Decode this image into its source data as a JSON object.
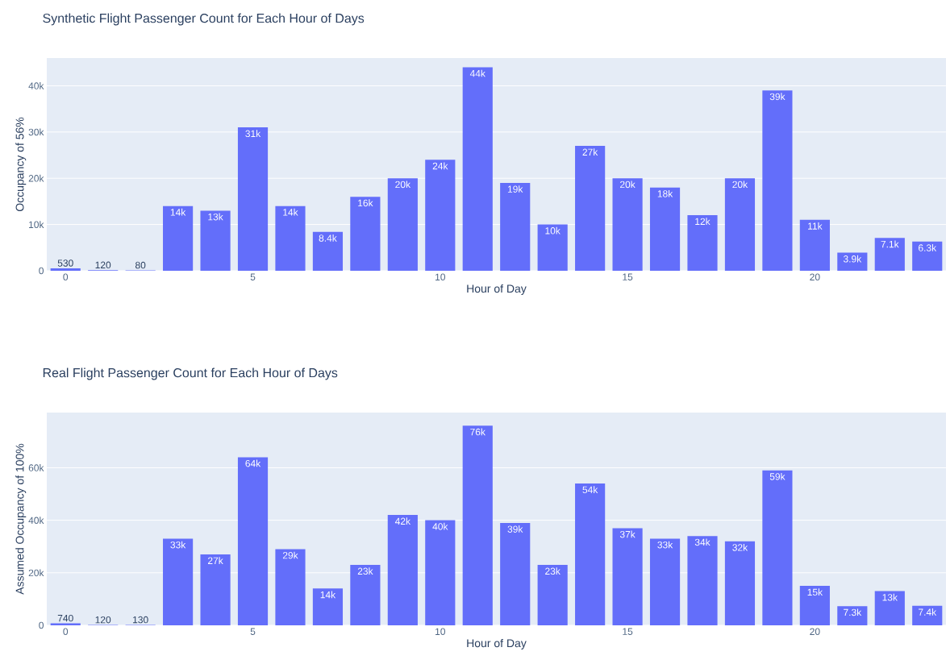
{
  "chart_data": [
    {
      "type": "bar",
      "title": "Synthetic Flight Passenger Count for Each Hour of Days",
      "xlabel": "Hour of Day",
      "ylabel": "Occupancy of 56%",
      "color": "#636efa",
      "x": [
        0,
        1,
        2,
        3,
        4,
        5,
        6,
        7,
        8,
        9,
        10,
        11,
        12,
        13,
        14,
        15,
        16,
        17,
        18,
        19,
        20,
        21,
        22,
        23
      ],
      "values": [
        530,
        120,
        80,
        14000,
        13000,
        31000,
        14000,
        8400,
        16000,
        20000,
        24000,
        44000,
        19000,
        10000,
        27000,
        20000,
        18000,
        12000,
        20000,
        39000,
        11000,
        3900,
        7100,
        6300
      ],
      "value_labels": [
        "530",
        "120",
        "80",
        "14k",
        "13k",
        "31k",
        "14k",
        "8.4k",
        "16k",
        "20k",
        "24k",
        "44k",
        "19k",
        "10k",
        "27k",
        "20k",
        "18k",
        "12k",
        "20k",
        "39k",
        "11k",
        "3.9k",
        "7.1k",
        "6.3k"
      ],
      "xlim": [
        -0.5,
        23.5
      ],
      "xticks": [
        0,
        5,
        10,
        15,
        20
      ],
      "ylim": [
        0,
        46000
      ],
      "yticks": [
        0,
        {
          "value": 10000,
          "label": "10k"
        },
        {
          "value": 20000,
          "label": "20k"
        },
        {
          "value": 30000,
          "label": "30k"
        },
        {
          "value": 40000,
          "label": "40k"
        }
      ],
      "grid": "y"
    },
    {
      "type": "bar",
      "title": "Real Flight Passenger Count for Each Hour of Days",
      "xlabel": "Hour of Day",
      "ylabel": "Assumed Occupancy of 100%",
      "color": "#636efa",
      "x": [
        0,
        1,
        2,
        3,
        4,
        5,
        6,
        7,
        8,
        9,
        10,
        11,
        12,
        13,
        14,
        15,
        16,
        17,
        18,
        19,
        20,
        21,
        22,
        23
      ],
      "values": [
        740,
        120,
        130,
        33000,
        27000,
        64000,
        29000,
        14000,
        23000,
        42000,
        40000,
        76000,
        39000,
        23000,
        54000,
        37000,
        33000,
        34000,
        32000,
        59000,
        15000,
        7300,
        13000,
        7400
      ],
      "value_labels": [
        "740",
        "120",
        "130",
        "33k",
        "27k",
        "64k",
        "29k",
        "14k",
        "23k",
        "42k",
        "40k",
        "76k",
        "39k",
        "23k",
        "54k",
        "37k",
        "33k",
        "34k",
        "32k",
        "59k",
        "15k",
        "7.3k",
        "13k",
        "7.4k"
      ],
      "xlim": [
        -0.5,
        23.5
      ],
      "xticks": [
        0,
        5,
        10,
        15,
        20
      ],
      "ylim": [
        0,
        81000
      ],
      "yticks": [
        0,
        {
          "value": 20000,
          "label": "20k"
        },
        {
          "value": 40000,
          "label": "40k"
        },
        {
          "value": 60000,
          "label": "60k"
        }
      ],
      "grid": "y"
    }
  ]
}
